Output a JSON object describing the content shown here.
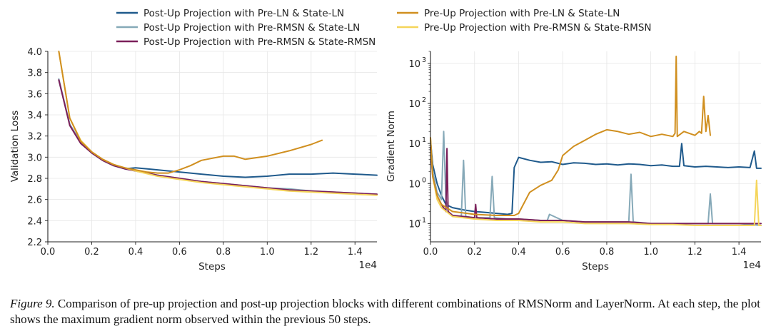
{
  "legend": [
    {
      "label": "Post-Up Projection with Pre-LN & State-LN",
      "color": "#1f5a8c"
    },
    {
      "label": "Post-Up Projection with Pre-RMSN & State-LN",
      "color": "#86a9b8"
    },
    {
      "label": "Post-Up Projection with Pre-RMSN & State-RMSN",
      "color": "#7b1f5a"
    },
    {
      "label": "Pre-Up Projection with Pre-LN & State-LN",
      "color": "#d08f1f"
    },
    {
      "label": "Pre-Up Projection with Pre-RMSN & State-RMSN",
      "color": "#f5d55a"
    }
  ],
  "chart_data": [
    {
      "type": "line",
      "title": "",
      "xlabel": "Steps",
      "ylabel": "Validation Loss",
      "x_multiplier": "1e4",
      "xlim": [
        0,
        1.5
      ],
      "ylim": [
        2.2,
        4.0
      ],
      "xticks": [
        "0.0",
        "0.2",
        "0.4",
        "0.6",
        "0.8",
        "1.0",
        "1.2",
        "1.4"
      ],
      "yticks": [
        "2.2",
        "2.4",
        "2.6",
        "2.8",
        "3.0",
        "3.2",
        "3.4",
        "3.6",
        "3.8",
        "4.0"
      ],
      "grid": true,
      "series": [
        {
          "name": "Post-Up Projection with Pre-LN & State-LN",
          "x": [
            0.05,
            0.1,
            0.15,
            0.2,
            0.25,
            0.3,
            0.35,
            0.4,
            0.45,
            0.5,
            0.6,
            0.7,
            0.8,
            0.9,
            1.0,
            1.1,
            1.2,
            1.3,
            1.4,
            1.5
          ],
          "y": [
            3.73,
            3.31,
            3.14,
            3.04,
            2.97,
            2.92,
            2.89,
            2.9,
            2.89,
            2.88,
            2.86,
            2.84,
            2.82,
            2.81,
            2.82,
            2.84,
            2.84,
            2.85,
            2.84,
            2.83
          ]
        },
        {
          "name": "Post-Up Projection with Pre-RMSN & State-LN",
          "x": [
            0.05,
            0.1,
            0.15,
            0.2,
            0.25,
            0.3,
            0.35,
            0.4,
            0.5,
            0.6,
            0.7,
            0.8,
            0.9,
            1.0,
            1.1,
            1.2,
            1.3,
            1.4,
            1.5
          ],
          "y": [
            3.74,
            3.31,
            3.14,
            3.04,
            2.97,
            2.92,
            2.89,
            2.87,
            2.83,
            2.8,
            2.77,
            2.75,
            2.73,
            2.71,
            2.7,
            2.68,
            2.67,
            2.66,
            2.65
          ]
        },
        {
          "name": "Post-Up Projection with Pre-RMSN & State-RMSN",
          "x": [
            0.05,
            0.1,
            0.15,
            0.2,
            0.25,
            0.3,
            0.35,
            0.4,
            0.5,
            0.6,
            0.7,
            0.8,
            0.9,
            1.0,
            1.1,
            1.2,
            1.3,
            1.4,
            1.5
          ],
          "y": [
            3.73,
            3.3,
            3.13,
            3.04,
            2.97,
            2.92,
            2.89,
            2.87,
            2.83,
            2.8,
            2.77,
            2.75,
            2.73,
            2.71,
            2.69,
            2.68,
            2.67,
            2.66,
            2.65
          ]
        },
        {
          "name": "Pre-Up Projection with Pre-LN & State-LN",
          "x": [
            0.05,
            0.1,
            0.15,
            0.2,
            0.25,
            0.3,
            0.35,
            0.4,
            0.45,
            0.5,
            0.55,
            0.6,
            0.65,
            0.7,
            0.75,
            0.8,
            0.85,
            0.9,
            1.0,
            1.1,
            1.2,
            1.25
          ],
          "y": [
            4.0,
            3.37,
            3.15,
            3.05,
            2.98,
            2.93,
            2.9,
            2.88,
            2.86,
            2.85,
            2.85,
            2.88,
            2.92,
            2.97,
            2.99,
            3.01,
            3.01,
            2.98,
            3.01,
            3.06,
            3.12,
            3.16
          ]
        },
        {
          "name": "Pre-Up Projection with Pre-RMSN & State-RMSN",
          "x": [
            0.05,
            0.1,
            0.15,
            0.2,
            0.25,
            0.3,
            0.35,
            0.4,
            0.5,
            0.6,
            0.7,
            0.8,
            0.9,
            1.0,
            1.1,
            1.2,
            1.3,
            1.4,
            1.5
          ],
          "y": [
            4.0,
            3.37,
            3.16,
            3.05,
            2.98,
            2.93,
            2.9,
            2.87,
            2.82,
            2.79,
            2.76,
            2.74,
            2.72,
            2.7,
            2.68,
            2.67,
            2.66,
            2.65,
            2.64
          ]
        }
      ]
    },
    {
      "type": "line",
      "title": "",
      "xlabel": "Steps",
      "ylabel": "Gradient Norm",
      "x_multiplier": "1e4",
      "yscale": "log",
      "xlim": [
        0,
        1.5
      ],
      "ylim": [
        0.035,
        2000
      ],
      "xticks": [
        "0.0",
        "0.2",
        "0.4",
        "0.6",
        "0.8",
        "1.0",
        "1.2",
        "1.4"
      ],
      "yticks": [
        {
          "base": "10",
          "exp": "−1",
          "value": 0.1
        },
        {
          "base": "10",
          "exp": "0",
          "value": 1
        },
        {
          "base": "10",
          "exp": "1",
          "value": 10
        },
        {
          "base": "10",
          "exp": "2",
          "value": 100
        },
        {
          "base": "10",
          "exp": "3",
          "value": 1000
        }
      ],
      "grid": true,
      "series": [
        {
          "name": "Post-Up Projection with Pre-LN & State-LN",
          "x": [
            0.0,
            0.01,
            0.03,
            0.05,
            0.07,
            0.1,
            0.15,
            0.2,
            0.25,
            0.3,
            0.35,
            0.37,
            0.38,
            0.4,
            0.45,
            0.5,
            0.55,
            0.6,
            0.65,
            0.7,
            0.75,
            0.8,
            0.85,
            0.9,
            0.95,
            1.0,
            1.05,
            1.1,
            1.13,
            1.14,
            1.15,
            1.2,
            1.25,
            1.3,
            1.35,
            1.4,
            1.45,
            1.47,
            1.48,
            1.5
          ],
          "y": [
            12,
            3.0,
            1.0,
            0.5,
            0.3,
            0.25,
            0.22,
            0.2,
            0.19,
            0.18,
            0.17,
            0.18,
            2.5,
            4.5,
            3.8,
            3.4,
            3.5,
            3.0,
            3.3,
            3.2,
            3.0,
            3.1,
            2.9,
            3.1,
            3.0,
            2.8,
            2.9,
            2.7,
            2.7,
            10,
            2.8,
            2.6,
            2.7,
            2.6,
            2.5,
            2.6,
            2.5,
            6.5,
            2.4,
            2.4
          ]
        },
        {
          "name": "Post-Up Projection with Pre-RMSN & State-LN",
          "x": [
            0.0,
            0.01,
            0.03,
            0.05,
            0.06,
            0.07,
            0.08,
            0.1,
            0.14,
            0.15,
            0.16,
            0.2,
            0.27,
            0.28,
            0.29,
            0.35,
            0.4,
            0.5,
            0.53,
            0.54,
            0.6,
            0.7,
            0.8,
            0.9,
            0.91,
            0.92,
            1.0,
            1.1,
            1.2,
            1.26,
            1.27,
            1.28,
            1.3,
            1.4,
            1.5
          ],
          "y": [
            10,
            2.0,
            0.6,
            0.4,
            20,
            0.4,
            0.2,
            0.16,
            0.15,
            3.8,
            0.15,
            0.14,
            0.14,
            1.5,
            0.14,
            0.13,
            0.13,
            0.12,
            0.12,
            0.17,
            0.12,
            0.11,
            0.11,
            0.11,
            1.7,
            0.11,
            0.1,
            0.1,
            0.1,
            0.1,
            0.55,
            0.1,
            0.1,
            0.1,
            0.09
          ]
        },
        {
          "name": "Post-Up Projection with Pre-RMSN & State-RMSN",
          "x": [
            0.0,
            0.01,
            0.03,
            0.05,
            0.07,
            0.075,
            0.08,
            0.1,
            0.15,
            0.2,
            0.205,
            0.21,
            0.3,
            0.4,
            0.5,
            0.6,
            0.7,
            0.8,
            0.9,
            1.0,
            1.1,
            1.2,
            1.3,
            1.4,
            1.5
          ],
          "y": [
            8,
            1.5,
            0.5,
            0.3,
            0.2,
            7.5,
            0.2,
            0.16,
            0.15,
            0.14,
            0.3,
            0.14,
            0.13,
            0.13,
            0.12,
            0.12,
            0.11,
            0.11,
            0.11,
            0.1,
            0.1,
            0.1,
            0.1,
            0.1,
            0.1
          ]
        },
        {
          "name": "Pre-Up Projection with Pre-LN & State-LN",
          "x": [
            0.0,
            0.01,
            0.03,
            0.05,
            0.1,
            0.2,
            0.3,
            0.35,
            0.38,
            0.4,
            0.45,
            0.5,
            0.55,
            0.58,
            0.6,
            0.65,
            0.7,
            0.75,
            0.8,
            0.85,
            0.9,
            0.95,
            1.0,
            1.05,
            1.1,
            1.11,
            1.115,
            1.12,
            1.15,
            1.2,
            1.22,
            1.23,
            1.24,
            1.25,
            1.26,
            1.27
          ],
          "y": [
            14,
            1.5,
            0.5,
            0.3,
            0.2,
            0.17,
            0.16,
            0.16,
            0.16,
            0.18,
            0.6,
            0.9,
            1.2,
            2.2,
            5.0,
            8.5,
            12,
            17,
            22,
            20,
            17,
            19,
            15,
            17,
            15,
            18,
            1500,
            15,
            20,
            16,
            20,
            18,
            150,
            20,
            50,
            16
          ]
        },
        {
          "name": "Pre-Up Projection with Pre-RMSN & State-RMSN",
          "x": [
            0.0,
            0.01,
            0.03,
            0.05,
            0.1,
            0.2,
            0.3,
            0.4,
            0.5,
            0.6,
            0.7,
            0.8,
            0.9,
            1.0,
            1.1,
            1.2,
            1.3,
            1.4,
            1.47,
            1.48,
            1.49,
            1.5
          ],
          "y": [
            14,
            1.5,
            0.4,
            0.25,
            0.15,
            0.13,
            0.12,
            0.12,
            0.11,
            0.11,
            0.1,
            0.1,
            0.1,
            0.095,
            0.095,
            0.09,
            0.09,
            0.09,
            0.09,
            1.2,
            0.09,
            0.09
          ]
        }
      ]
    }
  ],
  "caption": {
    "label": "Figure 9.",
    "text": "Comparison of pre-up projection and post-up projection blocks with different combinations of RMSNorm and LayerNorm. At each step, the plot shows the maximum gradient norm observed within the previous 50 steps."
  }
}
